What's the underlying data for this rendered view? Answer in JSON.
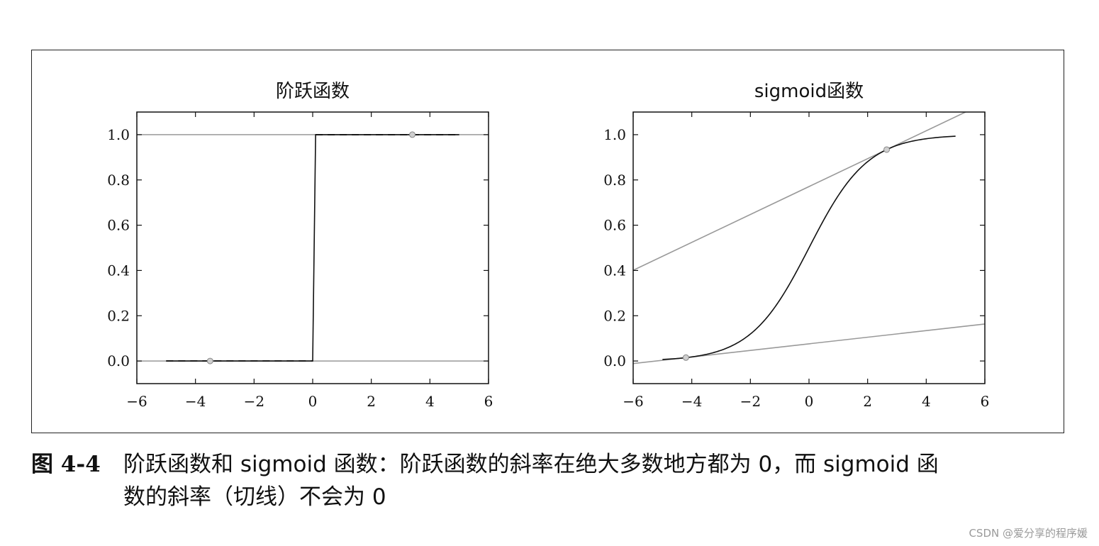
{
  "figure": {
    "number": "图 4-4",
    "caption_line1": "阶跃函数和 sigmoid 函数：阶跃函数的斜率在绝大多数地方都为 0，而 sigmoid 函",
    "caption_line2": "数的斜率（切线）不会为 0"
  },
  "watermark": "CSDN @爱分享的程序媛",
  "chart_data": [
    {
      "type": "line",
      "title": "阶跃函数",
      "xlim": [
        -6,
        6
      ],
      "ylim": [
        -0.1,
        1.1
      ],
      "xticks": [
        -6,
        -4,
        -2,
        0,
        2,
        4,
        6
      ],
      "xtick_labels": [
        "−6",
        "−4",
        "−2",
        "0",
        "2",
        "4",
        "6"
      ],
      "yticks": [
        0.0,
        0.2,
        0.4,
        0.6,
        0.8,
        1.0
      ],
      "ytick_labels": [
        "0.0",
        "0.2",
        "0.4",
        "0.6",
        "0.8",
        "1.0"
      ],
      "series": [
        {
          "style": "solid",
          "color": "#111111",
          "x": [
            -5,
            0,
            0.1,
            5
          ],
          "y": [
            0,
            0,
            1,
            1
          ]
        }
      ],
      "reference_lines": [
        {
          "y": 0.0,
          "color": "#999999"
        },
        {
          "y": 1.0,
          "color": "#999999"
        }
      ],
      "tangent_segments": [
        {
          "x": [
            -5,
            0
          ],
          "y": [
            0,
            0
          ],
          "style": "dashed"
        },
        {
          "x": [
            0.1,
            5
          ],
          "y": [
            1,
            1
          ],
          "style": "dashed"
        }
      ],
      "tangent_points": [
        {
          "x": -3.5,
          "y": 0.0
        },
        {
          "x": 3.4,
          "y": 1.0
        }
      ]
    },
    {
      "type": "line",
      "title": "sigmoid函数",
      "xlim": [
        -6,
        6
      ],
      "ylim": [
        -0.1,
        1.1
      ],
      "xticks": [
        -6,
        -4,
        -2,
        0,
        2,
        4,
        6
      ],
      "xtick_labels": [
        "−6",
        "−4",
        "−2",
        "0",
        "2",
        "4",
        "6"
      ],
      "yticks": [
        0.0,
        0.2,
        0.4,
        0.6,
        0.8,
        1.0
      ],
      "ytick_labels": [
        "0.0",
        "0.2",
        "0.4",
        "0.6",
        "0.8",
        "1.0"
      ],
      "series": [
        {
          "function": "sigmoid",
          "x_range": [
            -5,
            5
          ],
          "color": "#111111"
        }
      ],
      "tangent_lines": [
        {
          "x0": -4.2,
          "color": "#999999"
        },
        {
          "x0": 2.65,
          "color": "#999999"
        }
      ],
      "tangent_points": [
        {
          "x": -4.2,
          "y": 0.015
        },
        {
          "x": 2.65,
          "y": 0.934
        }
      ]
    }
  ]
}
